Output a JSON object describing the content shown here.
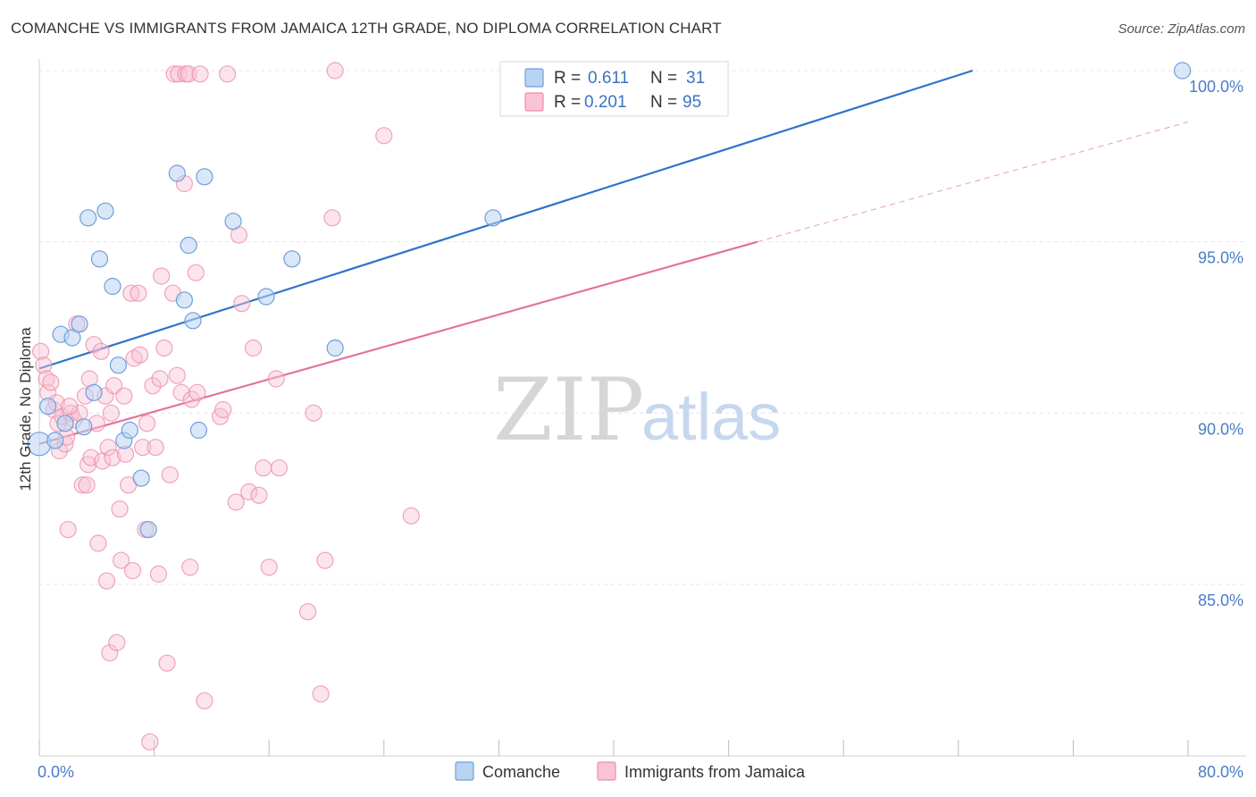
{
  "title": "COMANCHE VS IMMIGRANTS FROM JAMAICA 12TH GRADE, NO DIPLOMA CORRELATION CHART",
  "source": "Source: ZipAtlas.com",
  "watermark": {
    "zip": "ZIP",
    "atlas": "atlas"
  },
  "legend": {
    "r_label": "R =",
    "n_label": "N =",
    "rows": [
      {
        "series": "Comanche",
        "r": "0.611",
        "n": "31"
      },
      {
        "series": "Immigrants from Jamaica",
        "r": "0.201",
        "n": "95"
      }
    ]
  },
  "colors": {
    "comanche_fill": "#b9d3f2",
    "comanche_stroke": "#6e9fd9",
    "comanche_line": "#2f73c9",
    "jamaica_fill": "#f8c3d4",
    "jamaica_stroke": "#ec8eac",
    "jamaica_line": "#e2739b",
    "axis_label": "#4a7cc7",
    "grid": "#e4e4e4"
  },
  "chart_data": {
    "type": "scatter",
    "title": "COMANCHE VS IMMIGRANTS FROM JAMAICA 12TH GRADE, NO DIPLOMA CORRELATION CHART",
    "xlabel": "",
    "ylabel": "12th Grade, No Diploma",
    "xlim": [
      0,
      80
    ],
    "ylim": [
      80,
      100.5
    ],
    "x_tick_labels": [
      "0.0%",
      "80.0%"
    ],
    "y_ticks": [
      85,
      90,
      95,
      100
    ],
    "y_tick_labels": [
      "85.0%",
      "90.0%",
      "95.0%",
      "100.0%"
    ],
    "grid": true,
    "legend_position": "top-center",
    "series": [
      {
        "name": "Comanche",
        "r": 0.611,
        "n": 31,
        "trend": {
          "x": [
            0,
            65
          ],
          "y": [
            91.3,
            100.0
          ]
        },
        "points": [
          [
            0.0,
            89.1
          ],
          [
            0.6,
            90.2
          ],
          [
            1.1,
            89.2
          ],
          [
            1.5,
            92.3
          ],
          [
            1.8,
            89.7
          ],
          [
            2.3,
            92.2
          ],
          [
            2.8,
            92.6
          ],
          [
            3.1,
            89.6
          ],
          [
            3.4,
            95.7
          ],
          [
            3.8,
            90.6
          ],
          [
            4.2,
            94.5
          ],
          [
            4.6,
            95.9
          ],
          [
            5.1,
            93.7
          ],
          [
            5.5,
            91.4
          ],
          [
            5.9,
            89.2
          ],
          [
            6.3,
            89.5
          ],
          [
            7.1,
            88.1
          ],
          [
            7.6,
            86.6
          ],
          [
            9.6,
            97.0
          ],
          [
            10.1,
            93.3
          ],
          [
            10.4,
            94.9
          ],
          [
            10.7,
            92.7
          ],
          [
            11.1,
            89.5
          ],
          [
            11.5,
            96.9
          ],
          [
            13.5,
            95.6
          ],
          [
            15.8,
            93.4
          ],
          [
            17.6,
            94.5
          ],
          [
            20.6,
            91.9
          ],
          [
            31.6,
            95.7
          ],
          [
            33.6,
            100.0
          ],
          [
            79.6,
            100.0
          ]
        ]
      },
      {
        "name": "Immigrants from Jamaica",
        "r": 0.201,
        "n": 95,
        "trend": {
          "x": [
            0,
            50
          ],
          "y": [
            89.1,
            95.0
          ]
        },
        "trend_extension": {
          "x": [
            50,
            80
          ],
          "y": [
            95.0,
            98.5
          ]
        },
        "points": [
          [
            0.1,
            91.8
          ],
          [
            0.3,
            91.4
          ],
          [
            0.5,
            91.0
          ],
          [
            0.6,
            90.6
          ],
          [
            0.8,
            90.9
          ],
          [
            1.0,
            90.1
          ],
          [
            1.2,
            90.3
          ],
          [
            1.3,
            89.7
          ],
          [
            1.4,
            88.9
          ],
          [
            1.6,
            89.9
          ],
          [
            1.8,
            89.1
          ],
          [
            2.0,
            86.6
          ],
          [
            2.2,
            90.0
          ],
          [
            2.4,
            89.8
          ],
          [
            2.6,
            92.6
          ],
          [
            2.8,
            90.0
          ],
          [
            3.0,
            87.9
          ],
          [
            3.2,
            90.5
          ],
          [
            3.3,
            87.9
          ],
          [
            3.4,
            88.5
          ],
          [
            3.5,
            91.0
          ],
          [
            3.6,
            88.7
          ],
          [
            3.8,
            92.0
          ],
          [
            4.0,
            89.7
          ],
          [
            4.1,
            86.2
          ],
          [
            4.3,
            91.8
          ],
          [
            4.4,
            88.6
          ],
          [
            4.6,
            90.5
          ],
          [
            4.7,
            85.1
          ],
          [
            4.8,
            89.0
          ],
          [
            4.9,
            83.0
          ],
          [
            5.1,
            88.7
          ],
          [
            5.2,
            90.8
          ],
          [
            5.4,
            83.3
          ],
          [
            5.6,
            87.2
          ],
          [
            5.7,
            85.7
          ],
          [
            5.9,
            90.5
          ],
          [
            6.0,
            88.8
          ],
          [
            6.2,
            87.9
          ],
          [
            6.4,
            93.5
          ],
          [
            6.5,
            85.4
          ],
          [
            6.6,
            91.6
          ],
          [
            6.9,
            93.5
          ],
          [
            7.0,
            91.7
          ],
          [
            7.2,
            89.0
          ],
          [
            7.4,
            86.6
          ],
          [
            7.5,
            89.7
          ],
          [
            7.7,
            80.4
          ],
          [
            7.9,
            90.8
          ],
          [
            8.1,
            89.0
          ],
          [
            8.3,
            85.3
          ],
          [
            8.4,
            91.0
          ],
          [
            8.5,
            94.0
          ],
          [
            8.7,
            91.9
          ],
          [
            8.9,
            82.7
          ],
          [
            9.1,
            88.2
          ],
          [
            9.3,
            93.5
          ],
          [
            9.4,
            99.9
          ],
          [
            9.6,
            91.1
          ],
          [
            9.7,
            99.9
          ],
          [
            9.9,
            90.6
          ],
          [
            10.1,
            96.7
          ],
          [
            10.2,
            99.9
          ],
          [
            10.4,
            99.9
          ],
          [
            10.5,
            85.5
          ],
          [
            10.6,
            90.4
          ],
          [
            10.9,
            94.1
          ],
          [
            11.0,
            90.6
          ],
          [
            11.2,
            99.9
          ],
          [
            11.5,
            81.6
          ],
          [
            12.6,
            89.9
          ],
          [
            12.8,
            90.1
          ],
          [
            13.1,
            99.9
          ],
          [
            13.7,
            87.4
          ],
          [
            13.9,
            95.2
          ],
          [
            14.1,
            93.2
          ],
          [
            14.6,
            87.7
          ],
          [
            14.9,
            91.9
          ],
          [
            15.3,
            87.6
          ],
          [
            15.6,
            88.4
          ],
          [
            16.0,
            85.5
          ],
          [
            16.5,
            91.0
          ],
          [
            16.7,
            88.4
          ],
          [
            18.7,
            84.2
          ],
          [
            19.1,
            90.0
          ],
          [
            19.6,
            81.8
          ],
          [
            19.9,
            85.7
          ],
          [
            20.4,
            95.7
          ],
          [
            20.6,
            100.0
          ],
          [
            24.0,
            98.1
          ],
          [
            25.9,
            87.0
          ],
          [
            34.6,
            99.9
          ],
          [
            1.9,
            89.3
          ],
          [
            2.1,
            90.2
          ],
          [
            5.0,
            90.0
          ]
        ]
      }
    ]
  }
}
